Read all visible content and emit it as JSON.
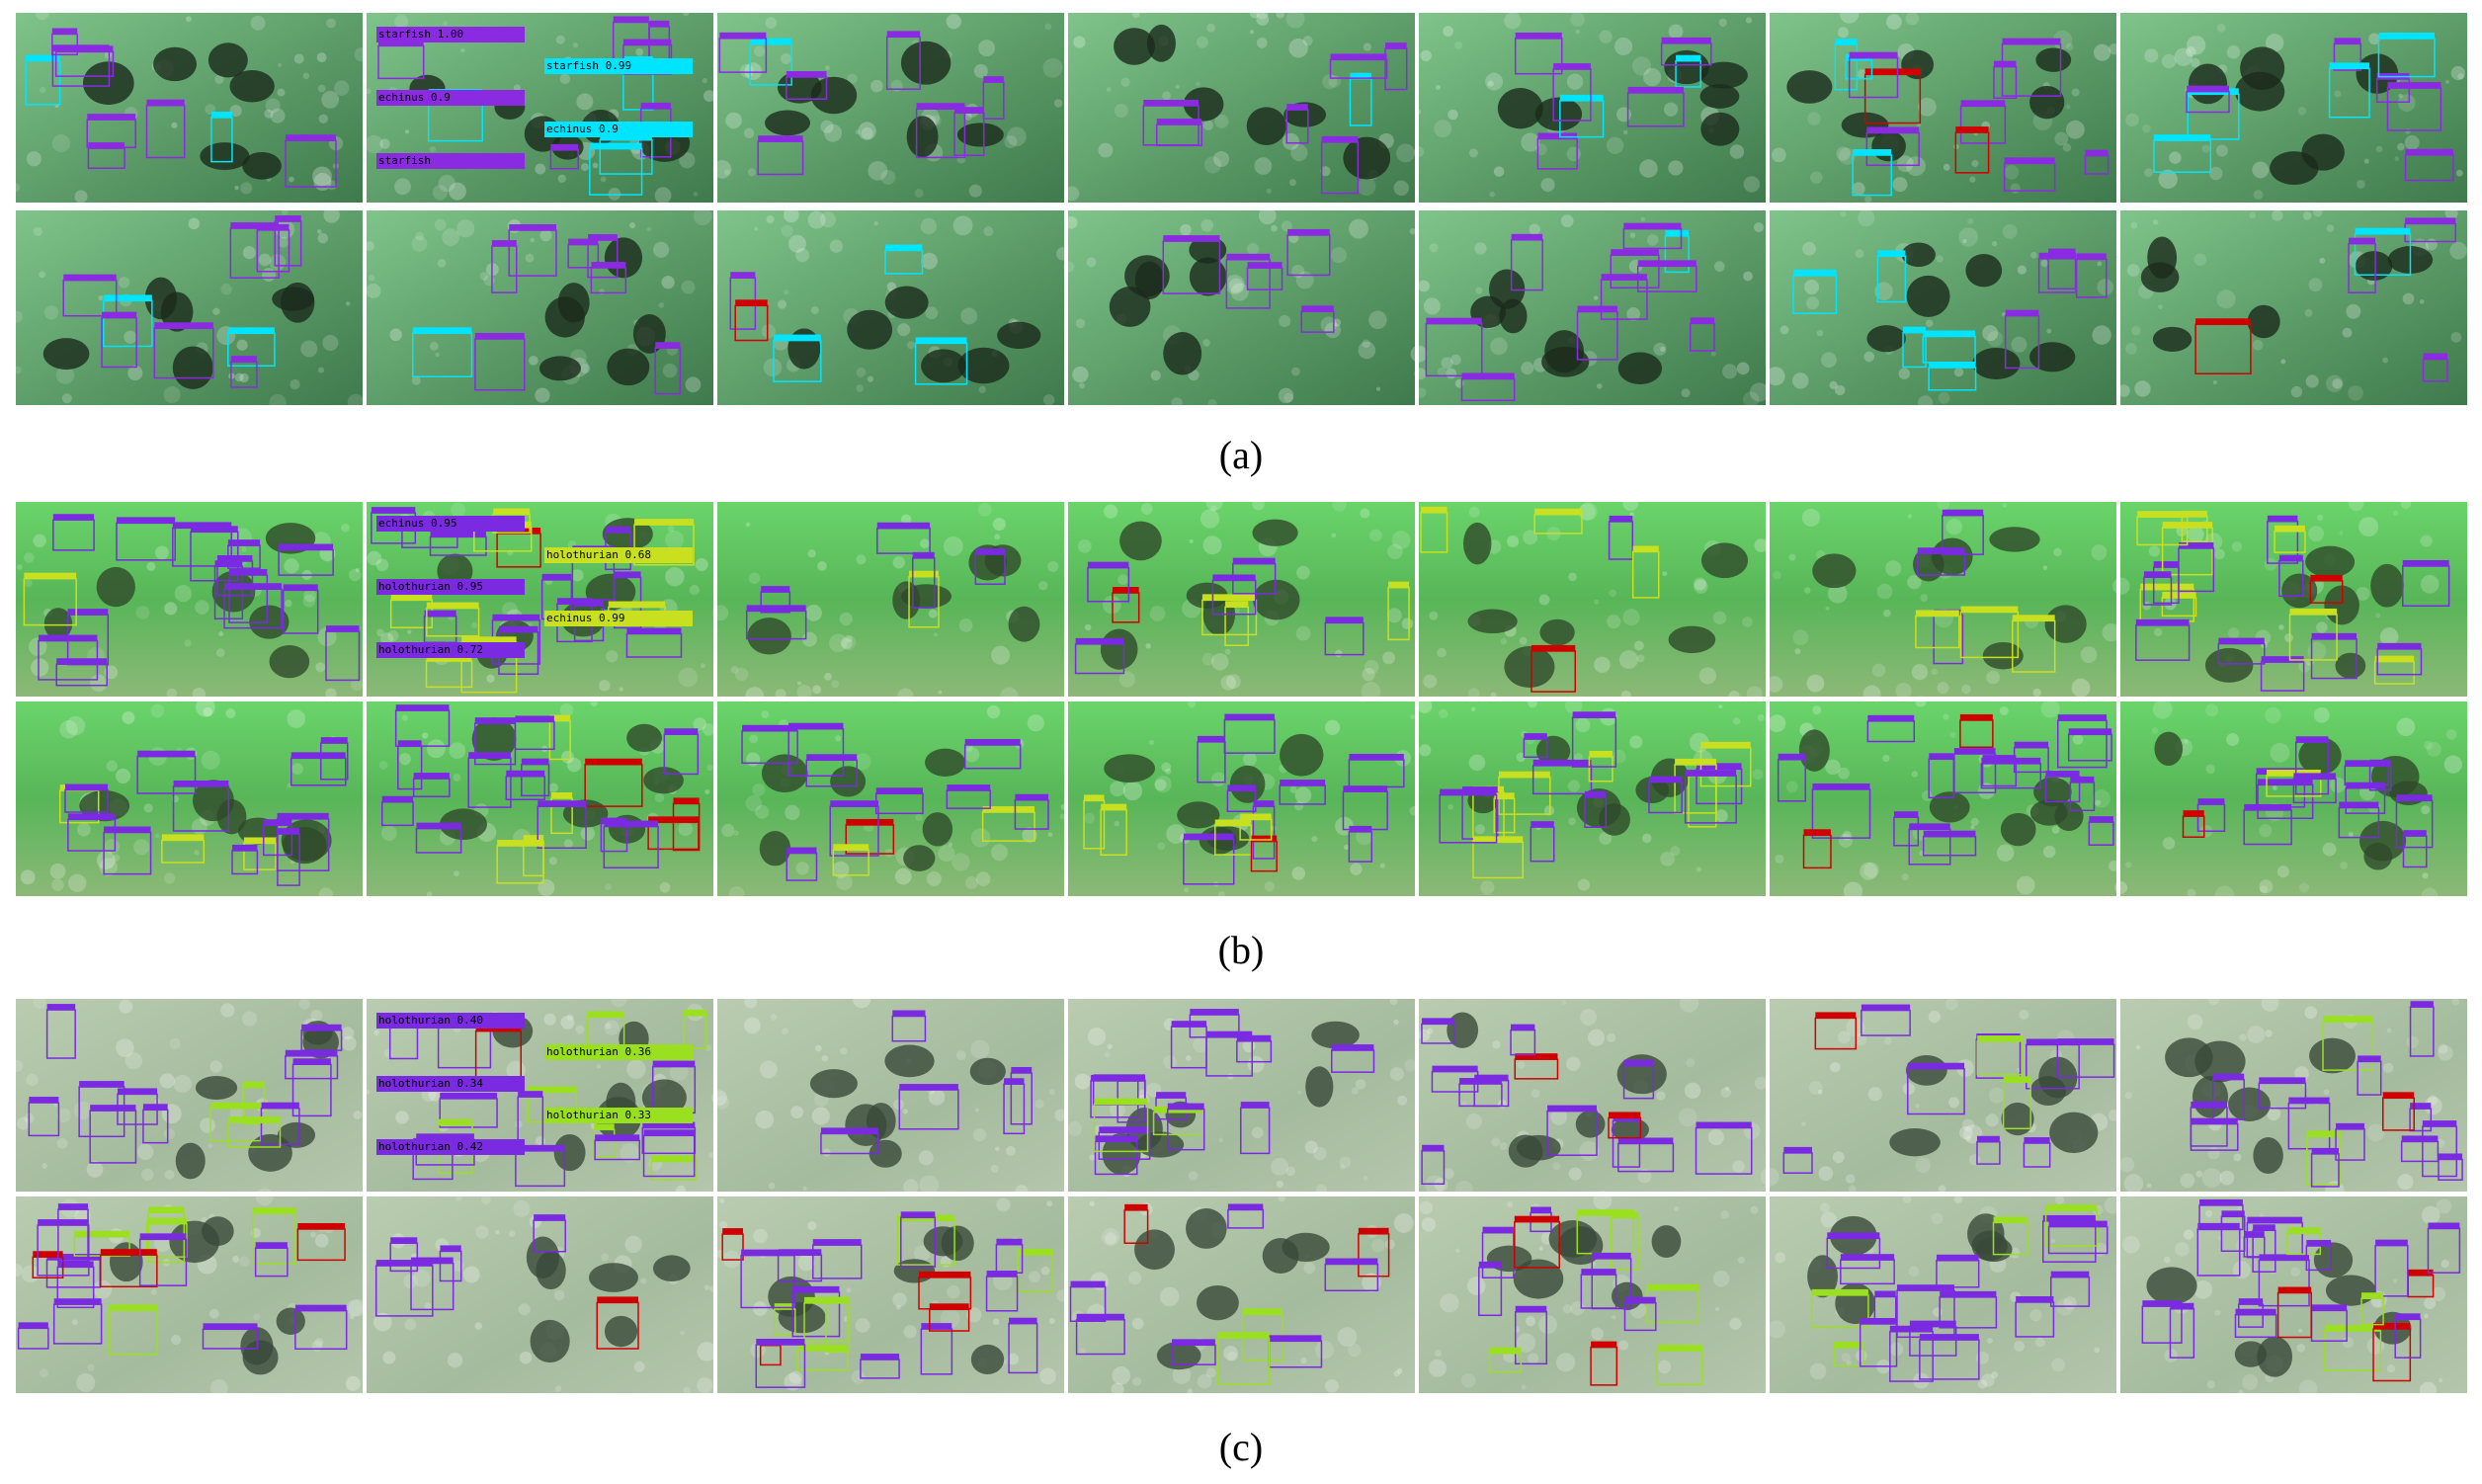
{
  "panels": [
    {
      "caption": "(a)",
      "labels": [
        "starfish 1.00",
        "starfish 0.99",
        "echinus 0.9",
        "echinus 0.9",
        "starfish"
      ]
    },
    {
      "caption": "(b)",
      "labels": [
        "echinus 0.95",
        "holothurian 0.68",
        "holothurian 0.95",
        "echinus 0.99",
        "holothurian 0.72"
      ]
    },
    {
      "caption": "(c)",
      "labels": [
        "holothurian 0.40",
        "holothurian 0.36",
        "holothurian 0.34",
        "holothurian 0.33",
        "holothurian 0.42"
      ]
    }
  ]
}
